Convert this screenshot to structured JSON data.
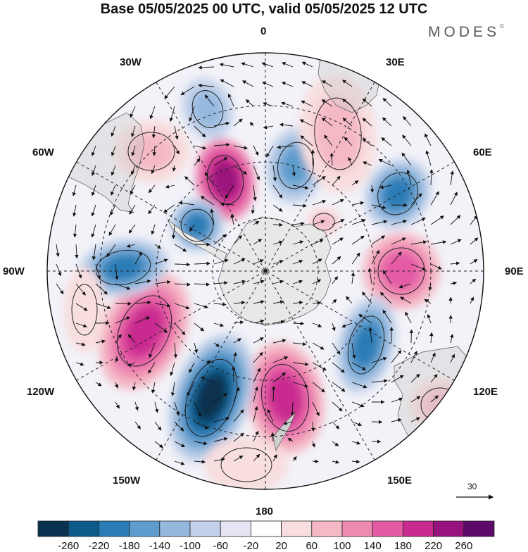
{
  "title": "Base 05/05/2025 00 UTC, valid 05/05/2025 12 UTC",
  "brand": {
    "text": "MODES",
    "mark": "©"
  },
  "map": {
    "projection": "south-polar-stereographic",
    "longitude_labels": {
      "top": "0",
      "bottom": "180",
      "left": "90W",
      "right": "90E",
      "nw30": "30W",
      "ne30": "30E",
      "nw60": "60W",
      "ne60": "60E",
      "sw120": "120W",
      "se120": "120E",
      "sw150": "150W",
      "se150": "150E"
    },
    "vector_reference": "30",
    "colors": {
      "neg": [
        "#08324f",
        "#0b5a8a",
        "#2a7bb6",
        "#5d9ccc",
        "#95b9de",
        "#c3d2ea",
        "#e4e4f2"
      ],
      "neutral": "#ffffff",
      "pos": [
        "#f8dede",
        "#f5b9c6",
        "#ee8ab2",
        "#e45aa4",
        "#c92a8f",
        "#98127d",
        "#5e0a6a"
      ],
      "land": "#b8b8b8",
      "continent_fill": "#e8e8e8"
    }
  },
  "colorbar": {
    "ticks": [
      "-260",
      "-220",
      "-180",
      "-140",
      "-100",
      "-60",
      "-20",
      "20",
      "60",
      "100",
      "140",
      "180",
      "220",
      "260"
    ],
    "colors": [
      "#08324f",
      "#0b5a8a",
      "#2a7bb6",
      "#5d9ccc",
      "#95b9de",
      "#c3d2ea",
      "#e4e4f2",
      "#ffffff",
      "#f8dede",
      "#f5b9c6",
      "#ee8ab2",
      "#e45aa4",
      "#c92a8f",
      "#98127d",
      "#5e0a6a"
    ]
  }
}
